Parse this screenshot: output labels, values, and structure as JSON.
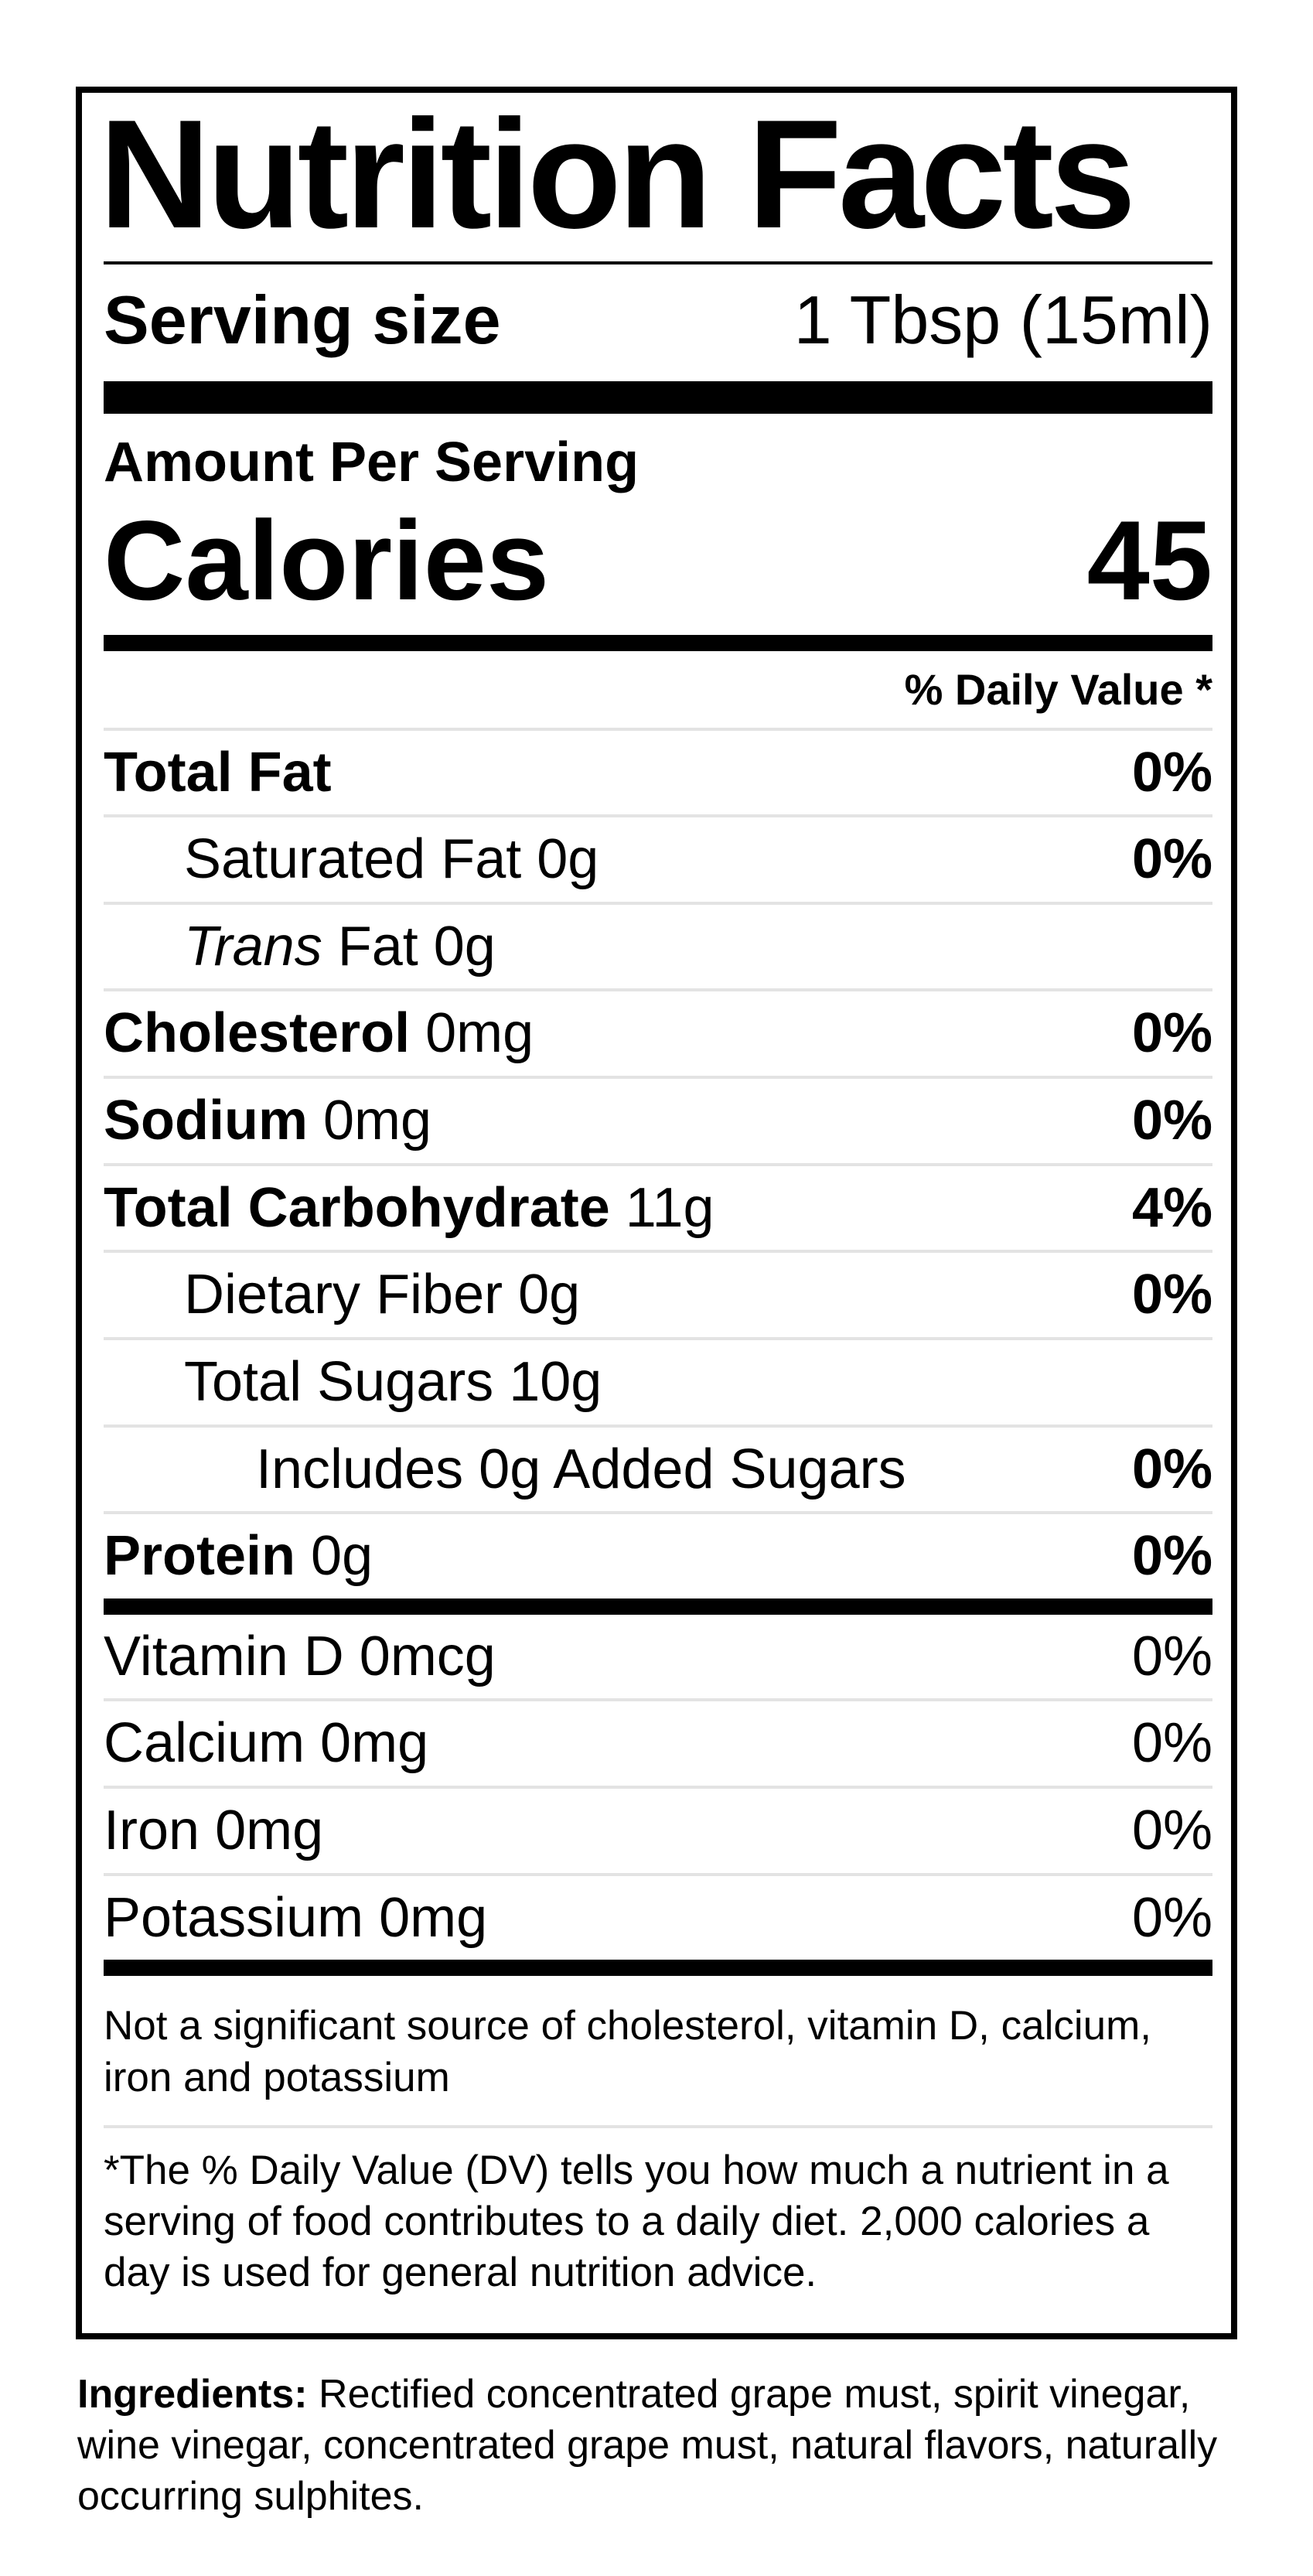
{
  "colors": {
    "text": "#000000",
    "background": "#ffffff",
    "divider": "#e3e3e3"
  },
  "label": {
    "title": "Nutrition Facts",
    "serving_size": {
      "label": "Serving size",
      "value": "1 Tbsp (15ml)"
    },
    "amount_per_serving": "Amount Per Serving",
    "calories": {
      "label": "Calories",
      "value": "45"
    },
    "daily_value_header": "% Daily Value *",
    "nutrients": [
      {
        "b": "Total Fat",
        "i": "",
        "r": "",
        "dv": "0%"
      },
      {
        "b": "",
        "i": "",
        "r": "Saturated Fat 0g",
        "dv": "0%"
      },
      {
        "b": "",
        "i": "Trans",
        "r": " Fat 0g",
        "dv": ""
      },
      {
        "b": "Cholesterol",
        "i": "",
        "r": " 0mg",
        "dv": "0%"
      },
      {
        "b": "Sodium",
        "i": "",
        "r": " 0mg",
        "dv": "0%"
      },
      {
        "b": "Total Carbohydrate",
        "i": "",
        "r": " 11g",
        "dv": "4%"
      },
      {
        "b": "",
        "i": "",
        "r": "Dietary Fiber 0g",
        "dv": "0%"
      },
      {
        "b": "",
        "i": "",
        "r": "Total Sugars 10g",
        "dv": ""
      },
      {
        "b": "",
        "i": "",
        "r": "Includes 0g Added Sugars",
        "dv": "0%"
      },
      {
        "b": "Protein",
        "i": "",
        "r": " 0g",
        "dv": "0%"
      }
    ],
    "micronutrients": [
      {
        "r": "Vitamin D 0mcg",
        "dv": "0%"
      },
      {
        "r": "Calcium 0mg",
        "dv": "0%"
      },
      {
        "r": "Iron 0mg",
        "dv": "0%"
      },
      {
        "r": "Potassium 0mg",
        "dv": "0%"
      }
    ],
    "not_significant_note": "Not a significant source of cholesterol, vitamin D, calcium, iron and potassium",
    "footnote": "*The % Daily Value (DV) tells you how much a nutrient in a serving of food contributes to a daily diet. 2,000 calories a day is used for general nutrition advice."
  },
  "ingredients": {
    "label": "Ingredients:",
    "text": " Rectified concentrated grape must, spirit vinegar, wine vinegar, concentrated grape must, natural flavors, naturally occurring sulphites."
  }
}
